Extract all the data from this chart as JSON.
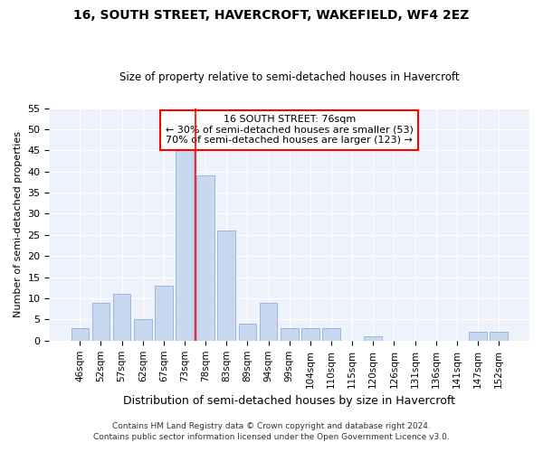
{
  "title": "16, SOUTH STREET, HAVERCROFT, WAKEFIELD, WF4 2EZ",
  "subtitle": "Size of property relative to semi-detached houses in Havercroft",
  "xlabel": "Distribution of semi-detached houses by size in Havercroft",
  "ylabel": "Number of semi-detached properties",
  "bar_labels": [
    "46sqm",
    "52sqm",
    "57sqm",
    "62sqm",
    "67sqm",
    "73sqm",
    "78sqm",
    "83sqm",
    "89sqm",
    "94sqm",
    "99sqm",
    "104sqm",
    "110sqm",
    "115sqm",
    "120sqm",
    "126sqm",
    "131sqm",
    "136sqm",
    "141sqm",
    "147sqm",
    "152sqm"
  ],
  "bar_values": [
    3,
    9,
    11,
    5,
    13,
    46,
    39,
    26,
    4,
    9,
    3,
    3,
    3,
    0,
    1,
    0,
    0,
    0,
    0,
    2,
    2
  ],
  "bar_color": "#c8d8f0",
  "bar_edgecolor": "#9ab8e0",
  "annotation_label1": "16 SOUTH STREET: 76sqm",
  "annotation_label2": "← 30% of semi-detached houses are smaller (53)",
  "annotation_label3": "70% of semi-detached houses are larger (123) →",
  "footer1": "Contains HM Land Registry data © Crown copyright and database right 2024.",
  "footer2": "Contains public sector information licensed under the Open Government Licence v3.0.",
  "ylim": [
    0,
    55
  ],
  "background_color": "#eef2fb"
}
